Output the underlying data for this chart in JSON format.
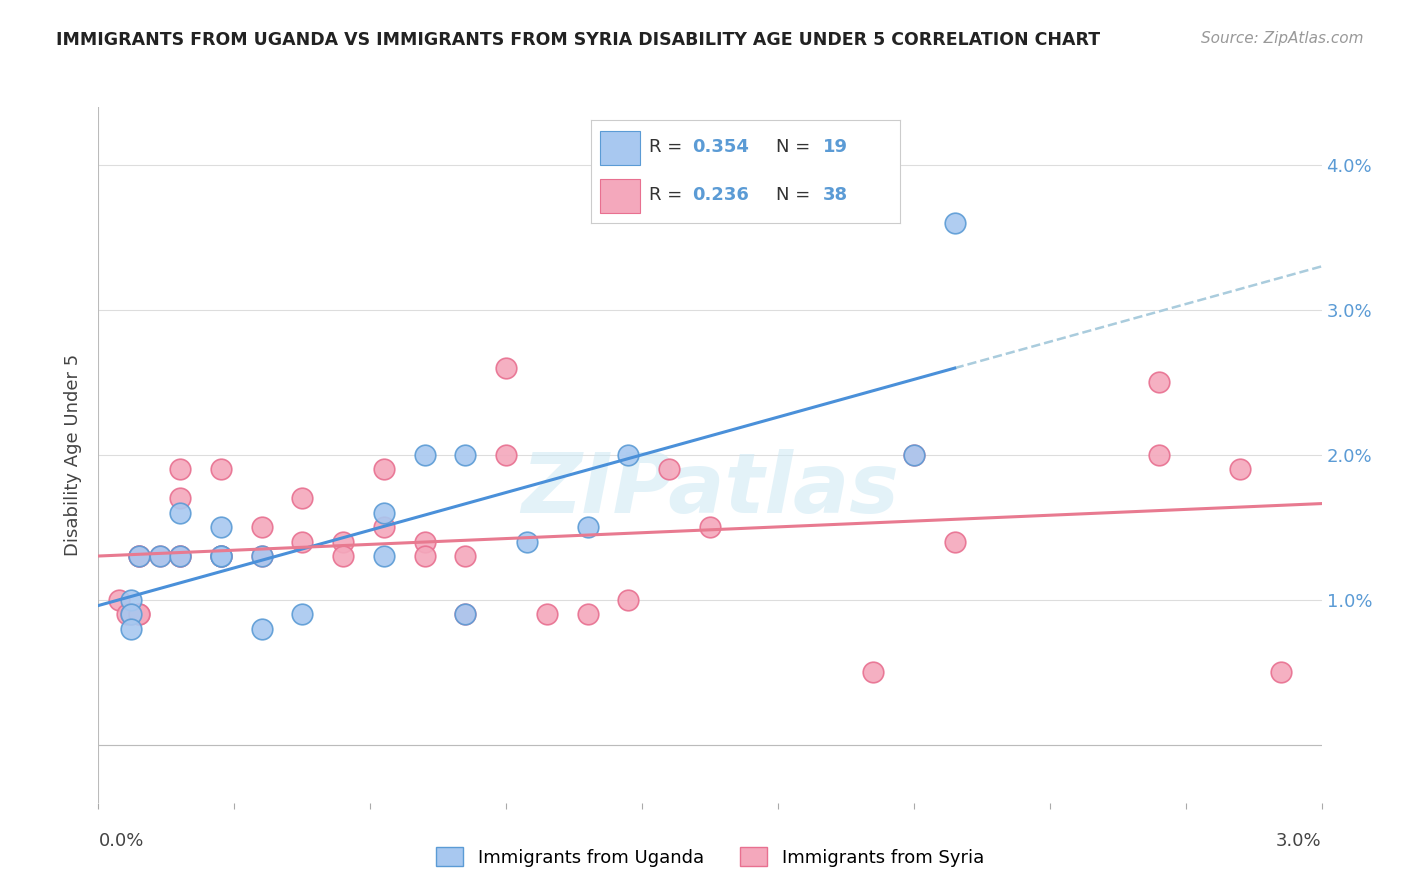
{
  "title": "IMMIGRANTS FROM UGANDA VS IMMIGRANTS FROM SYRIA DISABILITY AGE UNDER 5 CORRELATION CHART",
  "source": "Source: ZipAtlas.com",
  "ylabel": "Disability Age Under 5",
  "xlim": [
    0.0,
    0.03
  ],
  "ylim": [
    -0.004,
    0.044
  ],
  "yticks": [
    0.0,
    0.01,
    0.02,
    0.03,
    0.04
  ],
  "color_uganda": "#A8C8F0",
  "color_syria": "#F4A8BC",
  "color_uganda_edge": "#5B9BD5",
  "color_syria_edge": "#E87090",
  "color_uganda_line": "#4A90D9",
  "color_syria_line": "#E87A90",
  "color_dashed": "#AACCDD",
  "background": "#FFFFFF",
  "uganda_x": [
    0.0008,
    0.0008,
    0.0008,
    0.001,
    0.0015,
    0.002,
    0.002,
    0.003,
    0.003,
    0.003,
    0.004,
    0.004,
    0.005,
    0.007,
    0.007,
    0.008,
    0.009,
    0.009,
    0.0105,
    0.012,
    0.013,
    0.02,
    0.021
  ],
  "uganda_y": [
    0.01,
    0.009,
    0.008,
    0.013,
    0.013,
    0.013,
    0.016,
    0.015,
    0.013,
    0.013,
    0.013,
    0.008,
    0.009,
    0.016,
    0.013,
    0.02,
    0.02,
    0.009,
    0.014,
    0.015,
    0.02,
    0.02,
    0.036
  ],
  "syria_x": [
    0.0005,
    0.0007,
    0.0008,
    0.001,
    0.001,
    0.001,
    0.001,
    0.0015,
    0.002,
    0.002,
    0.002,
    0.002,
    0.003,
    0.003,
    0.003,
    0.004,
    0.004,
    0.005,
    0.005,
    0.006,
    0.006,
    0.007,
    0.007,
    0.008,
    0.008,
    0.009,
    0.009,
    0.01,
    0.01,
    0.011,
    0.012,
    0.013,
    0.014,
    0.015,
    0.019,
    0.02,
    0.021,
    0.026,
    0.026,
    0.028,
    0.029
  ],
  "syria_y": [
    0.01,
    0.009,
    0.009,
    0.013,
    0.009,
    0.013,
    0.009,
    0.013,
    0.013,
    0.019,
    0.017,
    0.013,
    0.013,
    0.013,
    0.019,
    0.015,
    0.013,
    0.014,
    0.017,
    0.014,
    0.013,
    0.015,
    0.019,
    0.014,
    0.013,
    0.013,
    0.009,
    0.026,
    0.02,
    0.009,
    0.009,
    0.01,
    0.019,
    0.015,
    0.005,
    0.02,
    0.014,
    0.02,
    0.025,
    0.019,
    0.005
  ]
}
